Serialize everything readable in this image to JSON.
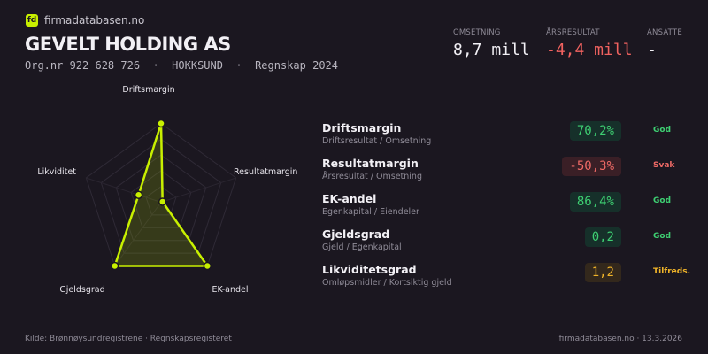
{
  "brand": {
    "logo_text": "fd",
    "site": "firmadatabasen.no"
  },
  "company": {
    "name": "GEVELT HOLDING AS",
    "subtitle": "Org.nr 922 628 726  ·  HOKKSUND  ·  Regnskap 2024"
  },
  "kpis": [
    {
      "label": "OMSETNING",
      "value": "8,7 mill",
      "color": "#f2f0f5"
    },
    {
      "label": "ÅRSRESULTAT",
      "value": "-4,4 mill",
      "color": "#f0625f"
    },
    {
      "label": "ANSATTE",
      "value": "-",
      "color": "#f2f0f5"
    }
  ],
  "chart_data": {
    "type": "radar",
    "axes": [
      "Driftsmargin",
      "Resultatmargin",
      "EK-andel",
      "Gjeldsgrad",
      "Likviditet"
    ],
    "values": [
      1.0,
      0.02,
      1.0,
      1.0,
      0.3
    ],
    "range": [
      0,
      1
    ],
    "grid_levels": 5,
    "color": "#c8f000"
  },
  "metrics": [
    {
      "name": "Driftsmargin",
      "formula": "Driftsresultat / Omsetning",
      "value": "70,2%",
      "status": "God",
      "color": "#3ecf72",
      "bg": "#16302a"
    },
    {
      "name": "Resultatmargin",
      "formula": "Årsresultat / Omsetning",
      "value": "-50,3%",
      "status": "Svak",
      "color": "#ef6a66",
      "bg": "#3a1f26"
    },
    {
      "name": "EK-andel",
      "formula": "Egenkapital / Eiendeler",
      "value": "86,4%",
      "status": "God",
      "color": "#3ecf72",
      "bg": "#16302a"
    },
    {
      "name": "Gjeldsgrad",
      "formula": "Gjeld / Egenkapital",
      "value": "0,2",
      "status": "God",
      "color": "#3ecf72",
      "bg": "#16302a"
    },
    {
      "name": "Likviditetsgrad",
      "formula": "Omløpsmidler / Kortsiktig gjeld",
      "value": "1,2",
      "status": "Tilfreds.",
      "color": "#f0b429",
      "bg": "#33281c"
    }
  ],
  "footer": {
    "source": "Kilde: Brønnøysundregistrene · Regnskapsregisteret",
    "site_date": "firmadatabasen.no · 13.3.2026"
  }
}
